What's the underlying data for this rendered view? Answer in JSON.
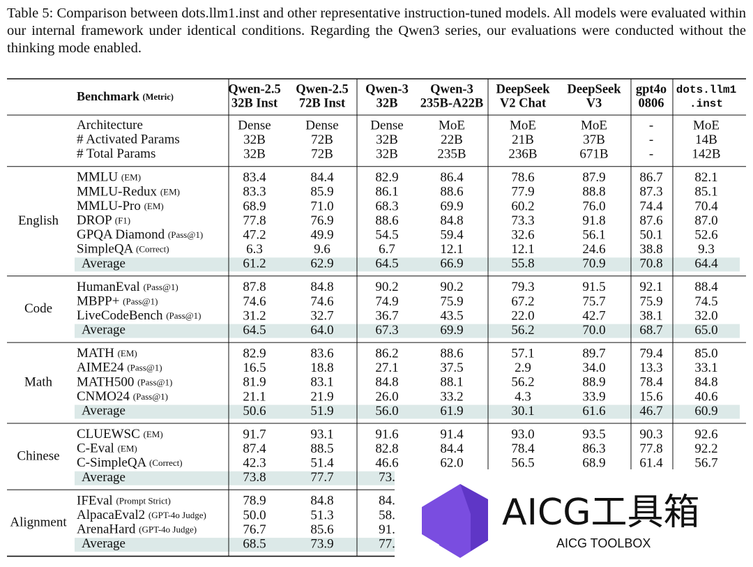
{
  "caption": "Table 5: Comparison between dots.llm1.inst and other representative instruction-tuned models. All models were evaluated within our internal framework under identical conditions. Regarding the Qwen3 series, our evaluations were conducted without the thinking mode enabled.",
  "table": {
    "header": {
      "benchmark": "Benchmark",
      "metric": "(Metric)",
      "columns": [
        [
          "Qwen-2.5",
          "32B Inst"
        ],
        [
          "Qwen-2.5",
          "72B Inst"
        ],
        [
          "Qwen-3",
          "32B"
        ],
        [
          "Qwen-3",
          "235B-A22B"
        ],
        [
          "DeepSeek",
          "V2 Chat"
        ],
        [
          "DeepSeek",
          "V3"
        ],
        [
          "gpt4o",
          "0806"
        ],
        [
          "dots.llm1",
          ".inst"
        ]
      ]
    },
    "sections": [
      {
        "rows": [
          {
            "label": "Architecture",
            "values": [
              "Dense",
              "Dense",
              "Dense",
              "MoE",
              "MoE",
              "MoE",
              "-",
              "MoE"
            ]
          },
          {
            "label": "# Activated Params",
            "values": [
              "32B",
              "72B",
              "32B",
              "22B",
              "21B",
              "37B",
              "-",
              "14B"
            ]
          },
          {
            "label": "# Total Params",
            "values": [
              "32B",
              "72B",
              "32B",
              "235B",
              "236B",
              "671B",
              "-",
              "142B"
            ]
          }
        ]
      },
      {
        "name": "English",
        "rows": [
          {
            "label": "MMLU",
            "metric": "(EM)",
            "values": [
              "83.4",
              "84.4",
              "82.9",
              "86.4",
              "78.6",
              "87.9",
              "86.7",
              "82.1"
            ]
          },
          {
            "label": "MMLU-Redux",
            "metric": "(EM)",
            "values": [
              "83.3",
              "85.9",
              "86.1",
              "88.6",
              "77.9",
              "88.8",
              "87.3",
              "85.1"
            ]
          },
          {
            "label": "MMLU-Pro",
            "metric": "(EM)",
            "values": [
              "68.9",
              "71.0",
              "68.3",
              "69.9",
              "60.2",
              "76.0",
              "74.4",
              "70.4"
            ]
          },
          {
            "label": "DROP",
            "metric": "(F1)",
            "values": [
              "77.8",
              "76.9",
              "88.6",
              "84.8",
              "73.3",
              "91.8",
              "87.6",
              "87.0"
            ]
          },
          {
            "label": "GPQA Diamond",
            "metric": "(Pass@1)",
            "values": [
              "47.2",
              "49.9",
              "54.5",
              "59.4",
              "32.6",
              "56.1",
              "50.1",
              "52.6"
            ]
          },
          {
            "label": "SimpleQA",
            "metric": "(Correct)",
            "values": [
              "6.3",
              "9.6",
              "6.7",
              "12.1",
              "12.1",
              "24.6",
              "38.8",
              "9.3"
            ]
          },
          {
            "label": "Average",
            "average": true,
            "values": [
              "61.2",
              "62.9",
              "64.5",
              "66.9",
              "55.8",
              "70.9",
              "70.8",
              "64.4"
            ]
          }
        ]
      },
      {
        "name": "Code",
        "rows": [
          {
            "label": "HumanEval",
            "metric": "(Pass@1)",
            "values": [
              "87.8",
              "84.8",
              "90.2",
              "90.2",
              "79.3",
              "91.5",
              "92.1",
              "88.4"
            ]
          },
          {
            "label": "MBPP+",
            "metric": "(Pass@1)",
            "values": [
              "74.6",
              "74.6",
              "74.9",
              "75.9",
              "67.2",
              "75.7",
              "75.9",
              "74.5"
            ]
          },
          {
            "label": "LiveCodeBench",
            "metric": "(Pass@1)",
            "values": [
              "31.2",
              "32.7",
              "36.7",
              "43.5",
              "22.0",
              "42.7",
              "38.1",
              "32.0"
            ]
          },
          {
            "label": "Average",
            "average": true,
            "values": [
              "64.5",
              "64.0",
              "67.3",
              "69.9",
              "56.2",
              "70.0",
              "68.7",
              "65.0"
            ]
          }
        ]
      },
      {
        "name": "Math",
        "rows": [
          {
            "label": "MATH",
            "metric": "(EM)",
            "values": [
              "82.9",
              "83.6",
              "86.2",
              "88.6",
              "57.1",
              "89.7",
              "79.4",
              "85.0"
            ]
          },
          {
            "label": "AIME24",
            "metric": "(Pass@1)",
            "values": [
              "16.5",
              "18.8",
              "27.1",
              "37.5",
              "2.9",
              "34.0",
              "13.3",
              "33.1"
            ]
          },
          {
            "label": "MATH500",
            "metric": "(Pass@1)",
            "values": [
              "81.9",
              "83.1",
              "84.8",
              "88.1",
              "56.2",
              "88.9",
              "78.4",
              "84.8"
            ]
          },
          {
            "label": "CNMO24",
            "metric": "(Pass@1)",
            "values": [
              "21.1",
              "21.9",
              "26.0",
              "33.2",
              "4.3",
              "33.9",
              "15.6",
              "40.6"
            ]
          },
          {
            "label": "Average",
            "average": true,
            "values": [
              "50.6",
              "51.9",
              "56.0",
              "61.9",
              "30.1",
              "61.6",
              "46.7",
              "60.9"
            ]
          }
        ]
      },
      {
        "name": "Chinese",
        "rows": [
          {
            "label": "CLUEWSC",
            "metric": "(EM)",
            "values": [
              "91.7",
              "93.1",
              "91.6",
              "91.4",
              "93.0",
              "93.5",
              "90.3",
              "92.6"
            ]
          },
          {
            "label": "C-Eval",
            "metric": "(EM)",
            "values": [
              "87.4",
              "88.5",
              "82.8",
              "84.4",
              "78.4",
              "86.3",
              "77.8",
              "92.2"
            ]
          },
          {
            "label": "C-SimpleQA",
            "metric": "(Correct)",
            "values": [
              "42.3",
              "51.4",
              "46.6",
              "62.0",
              "56.5",
              "68.9",
              "61.4",
              "56.7"
            ]
          },
          {
            "label": "Average",
            "average": true,
            "values": [
              "73.8",
              "77.7",
              "73.",
              null,
              null,
              null,
              null,
              null
            ]
          }
        ]
      },
      {
        "name": "Alignment",
        "rows": [
          {
            "label": "IFEval",
            "metric": "(Prompt Strict)",
            "values": [
              "78.9",
              "84.8",
              "84.",
              null,
              null,
              null,
              null,
              null
            ]
          },
          {
            "label": "AlpacaEval2",
            "metric": "(GPT-4o Judge)",
            "values": [
              "50.0",
              "51.3",
              "58.",
              null,
              null,
              null,
              null,
              null
            ]
          },
          {
            "label": "ArenaHard",
            "metric": "(GPT-4o Judge)",
            "values": [
              "76.7",
              "85.6",
              "91.",
              null,
              null,
              null,
              null,
              null
            ]
          },
          {
            "label": "Average",
            "average": true,
            "values": [
              "68.5",
              "73.9",
              "77.",
              null,
              null,
              null,
              null,
              null
            ]
          }
        ]
      }
    ]
  },
  "watermark": {
    "title": "AICG工具箱",
    "subtitle": "AICG TOOLBOX"
  }
}
